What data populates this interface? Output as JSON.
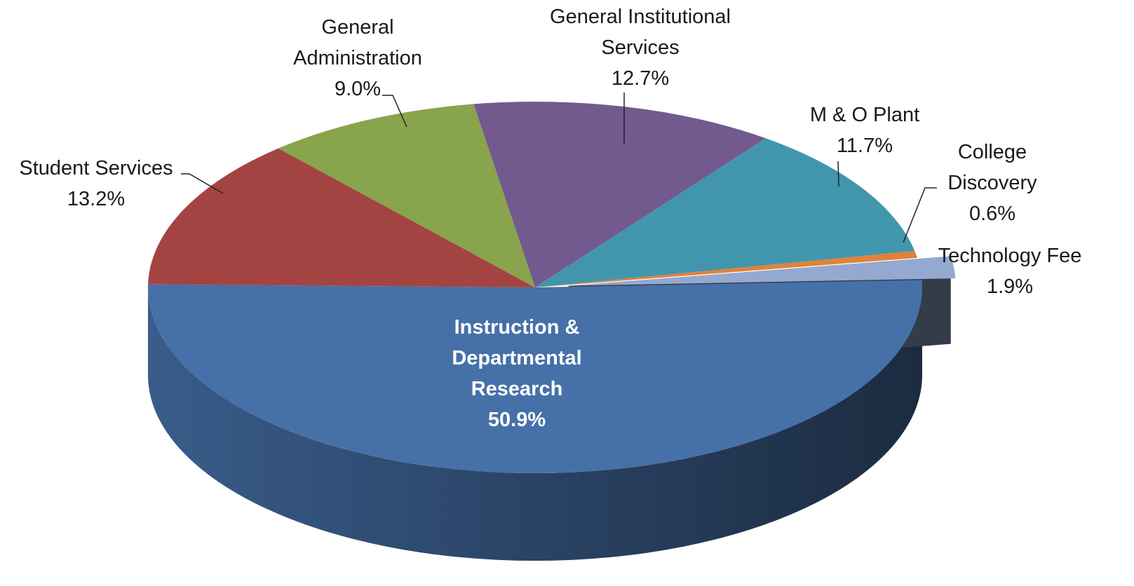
{
  "chart_data": {
    "type": "pie3d",
    "categories": [
      "Instruction & Departmental Research",
      "Student Services",
      "General Administration",
      "General Institutional Services",
      "M & O Plant",
      "College Discovery",
      "Technology Fee"
    ],
    "values": [
      50.9,
      13.2,
      9.0,
      12.7,
      11.7,
      0.6,
      1.9
    ],
    "value_labels": [
      "50.9%",
      "13.2%",
      "9.0%",
      "12.7%",
      "11.7%",
      "0.6%",
      "1.9%"
    ],
    "colors": [
      "#4670a8",
      "#a44442",
      "#88a44c",
      "#725a8e",
      "#4196ad",
      "#e0823a",
      "#94a9d0"
    ],
    "exploded": [
      6
    ]
  }
}
